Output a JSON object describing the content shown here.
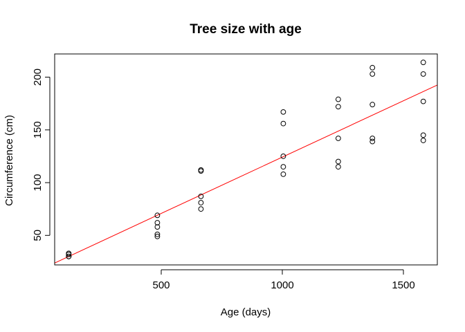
{
  "chart_data": {
    "type": "scatter",
    "title": "Tree size with age",
    "xlabel": "Age (days)",
    "ylabel": "Circumference (cm)",
    "xlim": [
      60,
      1640
    ],
    "ylim": [
      22,
      222
    ],
    "xticks": [
      500,
      1000,
      1500
    ],
    "yticks": [
      50,
      100,
      150,
      200
    ],
    "grid": false,
    "colors": {
      "points": "#000000",
      "fit_line": "#ff0000",
      "frame": "#000000"
    },
    "points": [
      {
        "x": 118,
        "y": 30
      },
      {
        "x": 118,
        "y": 33
      },
      {
        "x": 118,
        "y": 30
      },
      {
        "x": 118,
        "y": 32
      },
      {
        "x": 118,
        "y": 30
      },
      {
        "x": 484,
        "y": 58
      },
      {
        "x": 484,
        "y": 69
      },
      {
        "x": 484,
        "y": 51
      },
      {
        "x": 484,
        "y": 62
      },
      {
        "x": 484,
        "y": 49
      },
      {
        "x": 664,
        "y": 87
      },
      {
        "x": 664,
        "y": 111
      },
      {
        "x": 664,
        "y": 75
      },
      {
        "x": 664,
        "y": 112
      },
      {
        "x": 664,
        "y": 81
      },
      {
        "x": 1004,
        "y": 115
      },
      {
        "x": 1004,
        "y": 156
      },
      {
        "x": 1004,
        "y": 108
      },
      {
        "x": 1004,
        "y": 167
      },
      {
        "x": 1004,
        "y": 125
      },
      {
        "x": 1231,
        "y": 120
      },
      {
        "x": 1231,
        "y": 172
      },
      {
        "x": 1231,
        "y": 115
      },
      {
        "x": 1231,
        "y": 179
      },
      {
        "x": 1231,
        "y": 142
      },
      {
        "x": 1372,
        "y": 142
      },
      {
        "x": 1372,
        "y": 203
      },
      {
        "x": 1372,
        "y": 139
      },
      {
        "x": 1372,
        "y": 209
      },
      {
        "x": 1372,
        "y": 174
      },
      {
        "x": 1582,
        "y": 145
      },
      {
        "x": 1582,
        "y": 203
      },
      {
        "x": 1582,
        "y": 140
      },
      {
        "x": 1582,
        "y": 214
      },
      {
        "x": 1582,
        "y": 177
      }
    ],
    "fit_line": {
      "intercept": 17.4,
      "slope": 0.1068
    }
  }
}
